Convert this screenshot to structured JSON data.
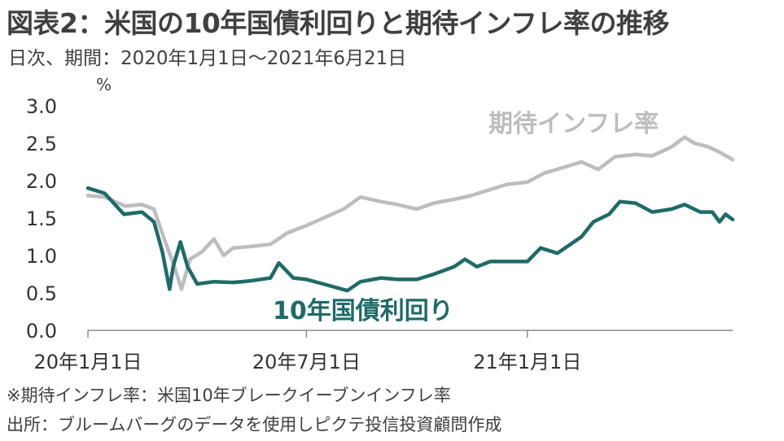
{
  "chart_data": {
    "type": "line",
    "title": "図表2：米国の10年国債利回りと期待インフレ率の推移",
    "subtitle": "日次、期間：2020年1月1日～2021年6月21日",
    "ylabel": "%",
    "xlabel": "",
    "ylim": [
      0,
      3
    ],
    "yticks": [
      "3.0",
      "2.5",
      "2.0",
      "1.5",
      "1.0",
      "0.5",
      "0.0"
    ],
    "xticks": [
      {
        "x": "2020-01-01",
        "label": "20年1月1日"
      },
      {
        "x": "2020-07-01",
        "label": "20年7月1日"
      },
      {
        "x": "2021-01-01",
        "label": "21年1月1日"
      }
    ],
    "xrange": [
      "2020-01-01",
      "2021-06-21"
    ],
    "series": [
      {
        "name": "期待インフレ率",
        "color": "#bdbdbd",
        "points": [
          [
            "2020-01-01",
            1.8
          ],
          [
            "2020-01-15",
            1.78
          ],
          [
            "2020-02-01",
            1.66
          ],
          [
            "2020-02-15",
            1.68
          ],
          [
            "2020-02-25",
            1.62
          ],
          [
            "2020-03-05",
            1.2
          ],
          [
            "2020-03-12",
            0.9
          ],
          [
            "2020-03-19",
            0.55
          ],
          [
            "2020-03-26",
            0.95
          ],
          [
            "2020-04-05",
            1.05
          ],
          [
            "2020-04-15",
            1.22
          ],
          [
            "2020-04-23",
            1.0
          ],
          [
            "2020-05-01",
            1.1
          ],
          [
            "2020-05-15",
            1.12
          ],
          [
            "2020-06-01",
            1.15
          ],
          [
            "2020-06-15",
            1.3
          ],
          [
            "2020-07-01",
            1.4
          ],
          [
            "2020-07-15",
            1.5
          ],
          [
            "2020-08-01",
            1.62
          ],
          [
            "2020-08-15",
            1.78
          ],
          [
            "2020-09-01",
            1.72
          ],
          [
            "2020-09-15",
            1.68
          ],
          [
            "2020-10-01",
            1.62
          ],
          [
            "2020-10-15",
            1.7
          ],
          [
            "2020-11-01",
            1.75
          ],
          [
            "2020-11-15",
            1.8
          ],
          [
            "2020-12-01",
            1.88
          ],
          [
            "2020-12-15",
            1.95
          ],
          [
            "2021-01-01",
            1.98
          ],
          [
            "2021-01-15",
            2.1
          ],
          [
            "2021-02-01",
            2.18
          ],
          [
            "2021-02-15",
            2.25
          ],
          [
            "2021-03-01",
            2.15
          ],
          [
            "2021-03-15",
            2.32
          ],
          [
            "2021-04-01",
            2.35
          ],
          [
            "2021-04-15",
            2.33
          ],
          [
            "2021-05-01",
            2.45
          ],
          [
            "2021-05-12",
            2.58
          ],
          [
            "2021-05-20",
            2.5
          ],
          [
            "2021-06-01",
            2.45
          ],
          [
            "2021-06-10",
            2.38
          ],
          [
            "2021-06-21",
            2.28
          ]
        ]
      },
      {
        "name": "10年国債利回り",
        "color": "#1e6b68",
        "points": [
          [
            "2020-01-01",
            1.9
          ],
          [
            "2020-01-15",
            1.83
          ],
          [
            "2020-01-31",
            1.55
          ],
          [
            "2020-02-15",
            1.58
          ],
          [
            "2020-02-25",
            1.45
          ],
          [
            "2020-03-03",
            1.05
          ],
          [
            "2020-03-09",
            0.55
          ],
          [
            "2020-03-12",
            0.85
          ],
          [
            "2020-03-18",
            1.18
          ],
          [
            "2020-03-24",
            0.85
          ],
          [
            "2020-04-01",
            0.62
          ],
          [
            "2020-04-15",
            0.65
          ],
          [
            "2020-05-01",
            0.64
          ],
          [
            "2020-05-15",
            0.66
          ],
          [
            "2020-06-01",
            0.7
          ],
          [
            "2020-06-08",
            0.9
          ],
          [
            "2020-06-20",
            0.7
          ],
          [
            "2020-07-01",
            0.68
          ],
          [
            "2020-07-15",
            0.62
          ],
          [
            "2020-08-04",
            0.53
          ],
          [
            "2020-08-15",
            0.65
          ],
          [
            "2020-09-01",
            0.7
          ],
          [
            "2020-09-15",
            0.68
          ],
          [
            "2020-10-01",
            0.68
          ],
          [
            "2020-10-15",
            0.75
          ],
          [
            "2020-11-01",
            0.85
          ],
          [
            "2020-11-10",
            0.95
          ],
          [
            "2020-11-20",
            0.85
          ],
          [
            "2020-12-01",
            0.92
          ],
          [
            "2020-12-15",
            0.92
          ],
          [
            "2021-01-01",
            0.92
          ],
          [
            "2021-01-12",
            1.1
          ],
          [
            "2021-01-26",
            1.03
          ],
          [
            "2021-02-15",
            1.25
          ],
          [
            "2021-02-25",
            1.45
          ],
          [
            "2021-03-10",
            1.55
          ],
          [
            "2021-03-19",
            1.72
          ],
          [
            "2021-04-01",
            1.7
          ],
          [
            "2021-04-15",
            1.58
          ],
          [
            "2021-05-01",
            1.62
          ],
          [
            "2021-05-12",
            1.68
          ],
          [
            "2021-05-25",
            1.58
          ],
          [
            "2021-06-04",
            1.58
          ],
          [
            "2021-06-10",
            1.45
          ],
          [
            "2021-06-15",
            1.55
          ],
          [
            "2021-06-21",
            1.48
          ]
        ]
      }
    ]
  },
  "notes": [
    "※期待インフレ率：米国10年ブレークイーブンインフレ率",
    "出所：ブルームバーグのデータを使用しピクテ投信投資顧問作成"
  ]
}
